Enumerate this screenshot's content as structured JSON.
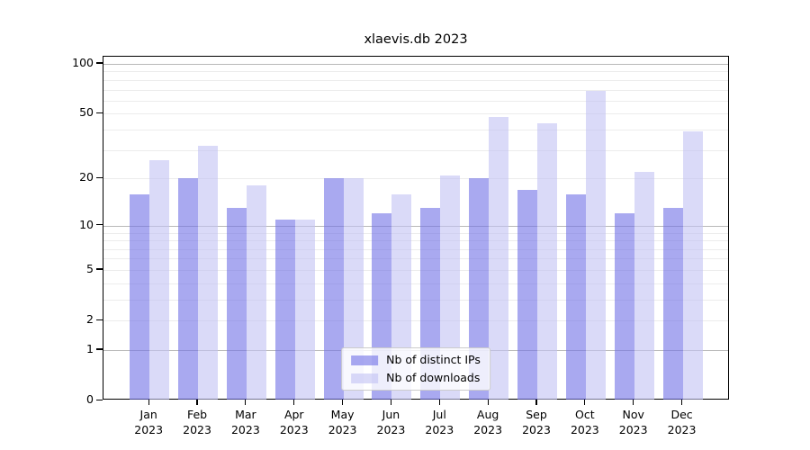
{
  "chart_data": {
    "type": "bar",
    "title": "xlaevis.db 2023",
    "categories": [
      "Jan 2023",
      "Feb 2023",
      "Mar 2023",
      "Apr 2023",
      "May 2023",
      "Jun 2023",
      "Jul 2023",
      "Aug 2023",
      "Sep 2023",
      "Oct 2023",
      "Nov 2023",
      "Dec 2023"
    ],
    "series": [
      {
        "name": "Nb of distinct IPs",
        "color": "rgba(112,112,230,0.6)",
        "values": [
          16,
          20,
          13,
          11,
          20,
          12,
          13,
          20,
          17,
          16,
          12,
          13
        ]
      },
      {
        "name": "Nb of downloads",
        "color": "rgba(193,193,243,0.6)",
        "values": [
          26,
          32,
          18,
          11,
          20,
          16,
          21,
          48,
          44,
          69,
          22,
          39
        ]
      }
    ],
    "xlabel": "",
    "ylabel": "",
    "yscale": "log1p",
    "ylim": [
      0,
      110
    ],
    "ytick_labels": [
      0,
      1,
      2,
      5,
      10,
      20,
      50,
      100
    ],
    "major_gridlines": [
      1,
      10,
      100
    ],
    "minor_gridlines": [
      2,
      3,
      4,
      5,
      6,
      7,
      8,
      9,
      20,
      30,
      40,
      50,
      60,
      70,
      80,
      90
    ],
    "grid": true,
    "legend_position": "lower center"
  },
  "colors": {
    "bar_distinct_ips_on_white": "#a9a9f0",
    "bar_downloads_on_white": "#d8d8f8",
    "major_gridline": "#b8b8b8",
    "minor_gridline": "#ececec",
    "axis": "#000000",
    "background": "#ffffff"
  }
}
